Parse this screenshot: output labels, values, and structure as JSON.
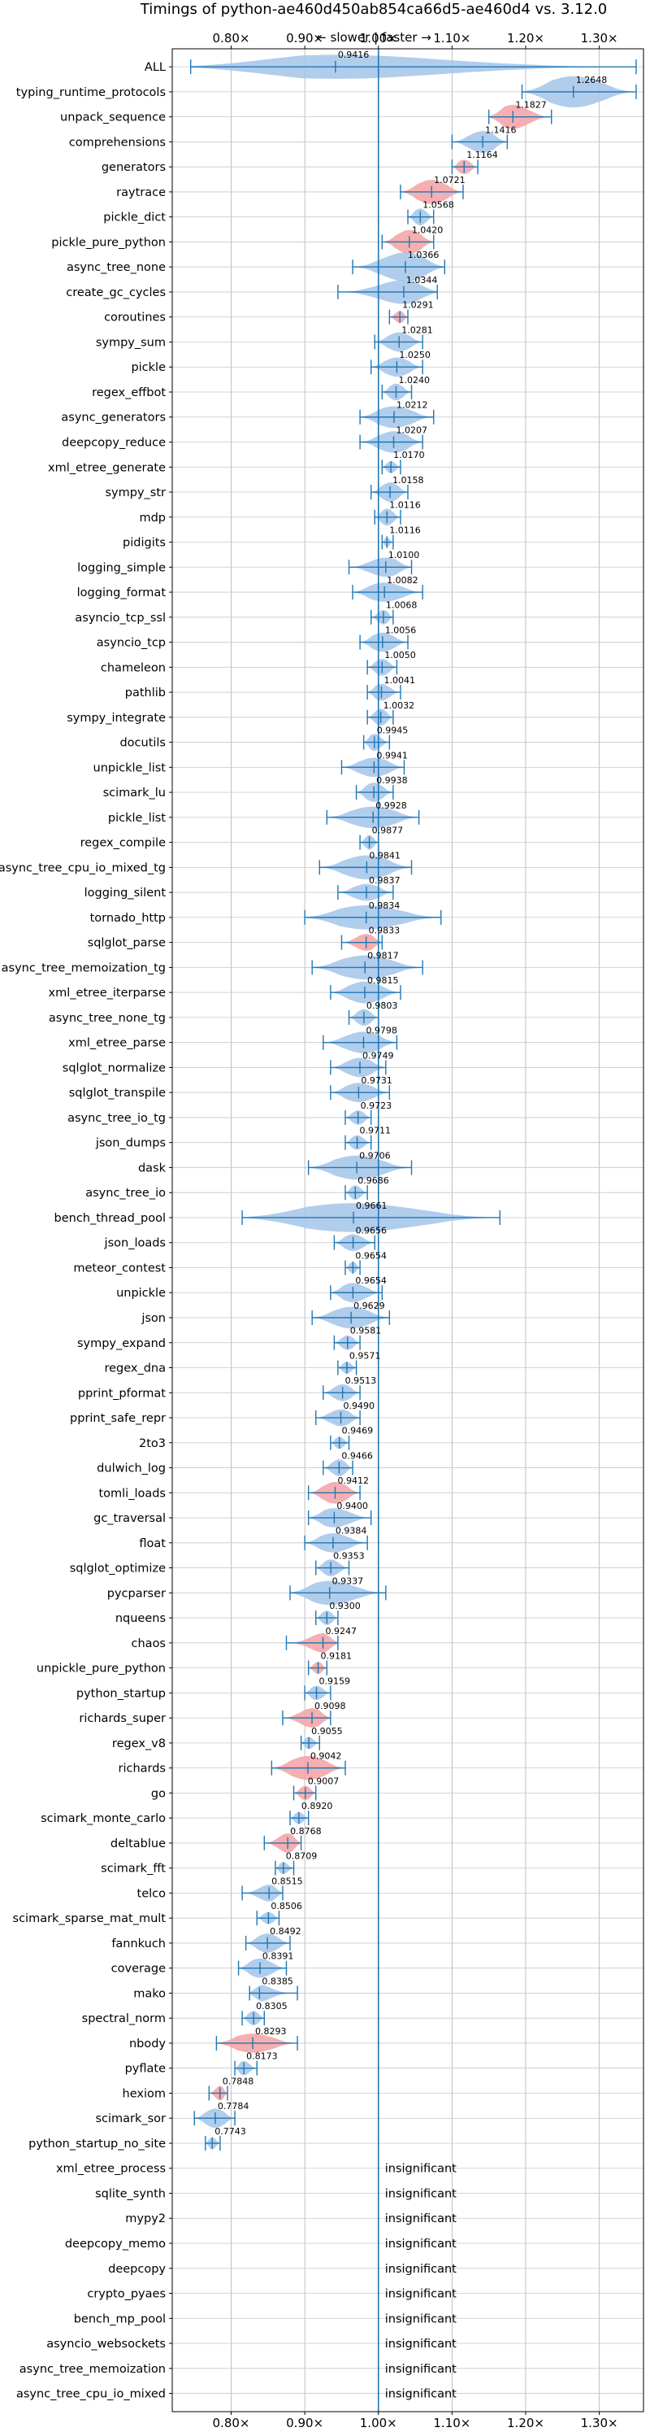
{
  "chart_data": {
    "type": "violin",
    "title": "Timings of python-ae460d450ab854ca66d5-ae460d4 vs. 3.12.0",
    "direction_label": "← slower | faster →",
    "xlim": [
      0.72,
      1.36
    ],
    "x_ticks": [
      0.8,
      0.9,
      1.0,
      1.1,
      1.2,
      1.3
    ],
    "x_tick_labels": [
      "0.80×",
      "0.90×",
      "1.00×",
      "1.10×",
      "1.20×",
      "1.30×"
    ],
    "reference_line": 1.0,
    "grid": true,
    "colors": {
      "normal": "#a8c8ea",
      "highlight": "#f4a6a8",
      "line": "#1f77b4"
    },
    "insignificant_text": "insignificant",
    "benchmarks": [
      {
        "name": "ALL",
        "mean": 0.9416,
        "label": "0.9416",
        "min": 0.745,
        "max": 1.35,
        "width": 1.0,
        "highlight": false,
        "significant": true
      },
      {
        "name": "typing_runtime_protocols",
        "mean": 1.2648,
        "label": "1.2648",
        "min": 1.195,
        "max": 1.35,
        "width": 1.3,
        "highlight": false,
        "significant": true
      },
      {
        "name": "unpack_sequence",
        "mean": 1.1827,
        "label": "1.1827",
        "min": 1.15,
        "max": 1.235,
        "width": 1.0,
        "highlight": true,
        "significant": true
      },
      {
        "name": "comprehensions",
        "mean": 1.1416,
        "label": "1.1416",
        "min": 1.1,
        "max": 1.175,
        "width": 0.9,
        "highlight": false,
        "significant": true
      },
      {
        "name": "generators",
        "mean": 1.1164,
        "label": "1.1164",
        "min": 1.1,
        "max": 1.135,
        "width": 0.6,
        "highlight": true,
        "significant": true
      },
      {
        "name": "raytrace",
        "mean": 1.0721,
        "label": "1.0721",
        "min": 1.03,
        "max": 1.115,
        "width": 1.0,
        "highlight": true,
        "significant": true
      },
      {
        "name": "pickle_dict",
        "mean": 1.0568,
        "label": "1.0568",
        "min": 1.04,
        "max": 1.075,
        "width": 0.7,
        "highlight": false,
        "significant": true
      },
      {
        "name": "pickle_pure_python",
        "mean": 1.042,
        "label": "1.0420",
        "min": 1.005,
        "max": 1.075,
        "width": 1.0,
        "highlight": true,
        "significant": true
      },
      {
        "name": "async_tree_none",
        "mean": 1.0366,
        "label": "1.0366",
        "min": 0.965,
        "max": 1.09,
        "width": 1.2,
        "highlight": false,
        "significant": true
      },
      {
        "name": "create_gc_cycles",
        "mean": 1.0344,
        "label": "1.0344",
        "min": 0.945,
        "max": 1.08,
        "width": 1.0,
        "highlight": false,
        "significant": true
      },
      {
        "name": "coroutines",
        "mean": 1.0291,
        "label": "1.0291",
        "min": 1.015,
        "max": 1.04,
        "width": 0.5,
        "highlight": true,
        "significant": true
      },
      {
        "name": "sympy_sum",
        "mean": 1.0281,
        "label": "1.0281",
        "min": 0.995,
        "max": 1.06,
        "width": 0.8,
        "highlight": false,
        "significant": true
      },
      {
        "name": "pickle",
        "mean": 1.025,
        "label": "1.0250",
        "min": 0.99,
        "max": 1.06,
        "width": 0.8,
        "highlight": false,
        "significant": true
      },
      {
        "name": "regex_effbot",
        "mean": 1.024,
        "label": "1.0240",
        "min": 1.005,
        "max": 1.045,
        "width": 0.7,
        "highlight": false,
        "significant": true
      },
      {
        "name": "async_generators",
        "mean": 1.0212,
        "label": "1.0212",
        "min": 0.975,
        "max": 1.075,
        "width": 0.9,
        "highlight": false,
        "significant": true
      },
      {
        "name": "deepcopy_reduce",
        "mean": 1.0207,
        "label": "1.0207",
        "min": 0.975,
        "max": 1.06,
        "width": 0.9,
        "highlight": false,
        "significant": true
      },
      {
        "name": "xml_etree_generate",
        "mean": 1.017,
        "label": "1.0170",
        "min": 1.005,
        "max": 1.03,
        "width": 0.5,
        "highlight": false,
        "significant": true
      },
      {
        "name": "sympy_str",
        "mean": 1.0158,
        "label": "1.0158",
        "min": 0.99,
        "max": 1.04,
        "width": 0.8,
        "highlight": false,
        "significant": true
      },
      {
        "name": "mdp",
        "mean": 1.0116,
        "label": "1.0116",
        "min": 0.995,
        "max": 1.03,
        "width": 0.7,
        "highlight": false,
        "significant": true
      },
      {
        "name": "pidigits",
        "mean": 1.0116,
        "label": "1.0116",
        "min": 1.005,
        "max": 1.02,
        "width": 0.4,
        "highlight": false,
        "significant": true
      },
      {
        "name": "logging_simple",
        "mean": 1.01,
        "label": "1.0100",
        "min": 0.96,
        "max": 1.045,
        "width": 0.8,
        "highlight": false,
        "significant": true
      },
      {
        "name": "logging_format",
        "mean": 1.0082,
        "label": "1.0082",
        "min": 0.965,
        "max": 1.06,
        "width": 0.8,
        "highlight": false,
        "significant": true
      },
      {
        "name": "asyncio_tcp_ssl",
        "mean": 1.0068,
        "label": "1.0068",
        "min": 0.99,
        "max": 1.02,
        "width": 0.6,
        "highlight": false,
        "significant": true
      },
      {
        "name": "asyncio_tcp",
        "mean": 1.0056,
        "label": "1.0056",
        "min": 0.975,
        "max": 1.04,
        "width": 0.8,
        "highlight": false,
        "significant": true
      },
      {
        "name": "chameleon",
        "mean": 1.005,
        "label": "1.0050",
        "min": 0.985,
        "max": 1.025,
        "width": 0.7,
        "highlight": false,
        "significant": true
      },
      {
        "name": "pathlib",
        "mean": 1.0041,
        "label": "1.0041",
        "min": 0.985,
        "max": 1.03,
        "width": 0.7,
        "highlight": false,
        "significant": true
      },
      {
        "name": "sympy_integrate",
        "mean": 1.0032,
        "label": "1.0032",
        "min": 0.985,
        "max": 1.02,
        "width": 0.7,
        "highlight": false,
        "significant": true
      },
      {
        "name": "docutils",
        "mean": 0.9945,
        "label": "0.9945",
        "min": 0.98,
        "max": 1.015,
        "width": 0.7,
        "highlight": false,
        "significant": true
      },
      {
        "name": "unpickle_list",
        "mean": 0.9941,
        "label": "0.9941",
        "min": 0.95,
        "max": 1.035,
        "width": 0.8,
        "highlight": false,
        "significant": true
      },
      {
        "name": "scimark_lu",
        "mean": 0.9938,
        "label": "0.9938",
        "min": 0.97,
        "max": 1.02,
        "width": 0.8,
        "highlight": false,
        "significant": true
      },
      {
        "name": "pickle_list",
        "mean": 0.9928,
        "label": "0.9928",
        "min": 0.93,
        "max": 1.055,
        "width": 0.9,
        "highlight": false,
        "significant": true
      },
      {
        "name": "regex_compile",
        "mean": 0.9877,
        "label": "0.9877",
        "min": 0.975,
        "max": 1.0,
        "width": 0.6,
        "highlight": false,
        "significant": true
      },
      {
        "name": "async_tree_cpu_io_mixed_tg",
        "mean": 0.9841,
        "label": "0.9841",
        "min": 0.92,
        "max": 1.045,
        "width": 1.0,
        "highlight": false,
        "significant": true
      },
      {
        "name": "logging_silent",
        "mean": 0.9837,
        "label": "0.9837",
        "min": 0.945,
        "max": 1.02,
        "width": 0.7,
        "highlight": false,
        "significant": true
      },
      {
        "name": "tornado_http",
        "mean": 0.9834,
        "label": "0.9834",
        "min": 0.9,
        "max": 1.085,
        "width": 1.0,
        "highlight": false,
        "significant": true
      },
      {
        "name": "sqlglot_parse",
        "mean": 0.9833,
        "label": "0.9833",
        "min": 0.95,
        "max": 1.005,
        "width": 0.7,
        "highlight": true,
        "significant": true
      },
      {
        "name": "async_tree_memoization_tg",
        "mean": 0.9817,
        "label": "0.9817",
        "min": 0.91,
        "max": 1.06,
        "width": 1.0,
        "highlight": false,
        "significant": true
      },
      {
        "name": "xml_etree_iterparse",
        "mean": 0.9815,
        "label": "0.9815",
        "min": 0.935,
        "max": 1.03,
        "width": 0.9,
        "highlight": false,
        "significant": true
      },
      {
        "name": "async_tree_none_tg",
        "mean": 0.9803,
        "label": "0.9803",
        "min": 0.96,
        "max": 1.0,
        "width": 0.7,
        "highlight": false,
        "significant": true
      },
      {
        "name": "xml_etree_parse",
        "mean": 0.9798,
        "label": "0.9798",
        "min": 0.925,
        "max": 1.025,
        "width": 0.9,
        "highlight": false,
        "significant": true
      },
      {
        "name": "sqlglot_normalize",
        "mean": 0.9749,
        "label": "0.9749",
        "min": 0.935,
        "max": 1.01,
        "width": 0.8,
        "highlight": false,
        "significant": true
      },
      {
        "name": "sqlglot_transpile",
        "mean": 0.9731,
        "label": "0.9731",
        "min": 0.935,
        "max": 1.015,
        "width": 0.8,
        "highlight": false,
        "significant": true
      },
      {
        "name": "async_tree_io_tg",
        "mean": 0.9723,
        "label": "0.9723",
        "min": 0.955,
        "max": 0.99,
        "width": 0.6,
        "highlight": false,
        "significant": true
      },
      {
        "name": "json_dumps",
        "mean": 0.9711,
        "label": "0.9711",
        "min": 0.955,
        "max": 0.99,
        "width": 0.6,
        "highlight": false,
        "significant": true
      },
      {
        "name": "dask",
        "mean": 0.9706,
        "label": "0.9706",
        "min": 0.905,
        "max": 1.045,
        "width": 1.0,
        "highlight": false,
        "significant": true
      },
      {
        "name": "async_tree_io",
        "mean": 0.9686,
        "label": "0.9686",
        "min": 0.955,
        "max": 0.985,
        "width": 0.6,
        "highlight": false,
        "significant": true
      },
      {
        "name": "bench_thread_pool",
        "mean": 0.9661,
        "label": "0.9661",
        "min": 0.815,
        "max": 1.165,
        "width": 1.2,
        "highlight": false,
        "significant": true
      },
      {
        "name": "json_loads",
        "mean": 0.9656,
        "label": "0.9656",
        "min": 0.94,
        "max": 0.995,
        "width": 0.7,
        "highlight": false,
        "significant": true
      },
      {
        "name": "meteor_contest",
        "mean": 0.9654,
        "label": "0.9654",
        "min": 0.955,
        "max": 0.975,
        "width": 0.5,
        "highlight": false,
        "significant": true
      },
      {
        "name": "unpickle",
        "mean": 0.9654,
        "label": "0.9654",
        "min": 0.935,
        "max": 1.005,
        "width": 0.8,
        "highlight": false,
        "significant": true
      },
      {
        "name": "json",
        "mean": 0.9629,
        "label": "0.9629",
        "min": 0.91,
        "max": 1.015,
        "width": 0.9,
        "highlight": false,
        "significant": true
      },
      {
        "name": "sympy_expand",
        "mean": 0.9581,
        "label": "0.9581",
        "min": 0.94,
        "max": 0.975,
        "width": 0.6,
        "highlight": false,
        "significant": true
      },
      {
        "name": "regex_dna",
        "mean": 0.9571,
        "label": "0.9571",
        "min": 0.945,
        "max": 0.97,
        "width": 0.5,
        "highlight": false,
        "significant": true
      },
      {
        "name": "pprint_pformat",
        "mean": 0.9513,
        "label": "0.9513",
        "min": 0.925,
        "max": 0.975,
        "width": 0.7,
        "highlight": false,
        "significant": true
      },
      {
        "name": "pprint_safe_repr",
        "mean": 0.949,
        "label": "0.9490",
        "min": 0.915,
        "max": 0.975,
        "width": 0.7,
        "highlight": false,
        "significant": true
      },
      {
        "name": "2to3",
        "mean": 0.9469,
        "label": "0.9469",
        "min": 0.935,
        "max": 0.96,
        "width": 0.5,
        "highlight": false,
        "significant": true
      },
      {
        "name": "dulwich_log",
        "mean": 0.9466,
        "label": "0.9466",
        "min": 0.925,
        "max": 0.965,
        "width": 0.7,
        "highlight": false,
        "significant": true
      },
      {
        "name": "tomli_loads",
        "mean": 0.9412,
        "label": "0.9412",
        "min": 0.905,
        "max": 0.975,
        "width": 0.9,
        "highlight": true,
        "significant": true
      },
      {
        "name": "gc_traversal",
        "mean": 0.94,
        "label": "0.9400",
        "min": 0.905,
        "max": 0.99,
        "width": 0.8,
        "highlight": false,
        "significant": true
      },
      {
        "name": "float",
        "mean": 0.9384,
        "label": "0.9384",
        "min": 0.9,
        "max": 0.985,
        "width": 0.8,
        "highlight": false,
        "significant": true
      },
      {
        "name": "sqlglot_optimize",
        "mean": 0.9353,
        "label": "0.9353",
        "min": 0.915,
        "max": 0.96,
        "width": 0.7,
        "highlight": false,
        "significant": true
      },
      {
        "name": "pycparser",
        "mean": 0.9337,
        "label": "0.9337",
        "min": 0.88,
        "max": 1.01,
        "width": 1.0,
        "highlight": false,
        "significant": true
      },
      {
        "name": "nqueens",
        "mean": 0.93,
        "label": "0.9300",
        "min": 0.915,
        "max": 0.945,
        "width": 0.6,
        "highlight": false,
        "significant": true
      },
      {
        "name": "chaos",
        "mean": 0.9247,
        "label": "0.9247",
        "min": 0.875,
        "max": 0.945,
        "width": 0.8,
        "highlight": true,
        "significant": true
      },
      {
        "name": "unpickle_pure_python",
        "mean": 0.9181,
        "label": "0.9181",
        "min": 0.905,
        "max": 0.93,
        "width": 0.5,
        "highlight": true,
        "significant": true
      },
      {
        "name": "python_startup",
        "mean": 0.9159,
        "label": "0.9159",
        "min": 0.9,
        "max": 0.935,
        "width": 0.6,
        "highlight": false,
        "significant": true
      },
      {
        "name": "richards_super",
        "mean": 0.9098,
        "label": "0.9098",
        "min": 0.87,
        "max": 0.935,
        "width": 0.8,
        "highlight": true,
        "significant": true
      },
      {
        "name": "regex_v8",
        "mean": 0.9055,
        "label": "0.9055",
        "min": 0.895,
        "max": 0.92,
        "width": 0.5,
        "highlight": false,
        "significant": true
      },
      {
        "name": "richards",
        "mean": 0.9042,
        "label": "0.9042",
        "min": 0.855,
        "max": 0.955,
        "width": 1.0,
        "highlight": true,
        "significant": true
      },
      {
        "name": "go",
        "mean": 0.9007,
        "label": "0.9007",
        "min": 0.885,
        "max": 0.915,
        "width": 0.6,
        "highlight": true,
        "significant": true
      },
      {
        "name": "scimark_monte_carlo",
        "mean": 0.892,
        "label": "0.8920",
        "min": 0.88,
        "max": 0.905,
        "width": 0.5,
        "highlight": false,
        "significant": true
      },
      {
        "name": "deltablue",
        "mean": 0.8768,
        "label": "0.8768",
        "min": 0.845,
        "max": 0.895,
        "width": 0.8,
        "highlight": true,
        "significant": true
      },
      {
        "name": "scimark_fft",
        "mean": 0.8709,
        "label": "0.8709",
        "min": 0.86,
        "max": 0.885,
        "width": 0.5,
        "highlight": false,
        "significant": true
      },
      {
        "name": "telco",
        "mean": 0.8515,
        "label": "0.8515",
        "min": 0.815,
        "max": 0.87,
        "width": 0.7,
        "highlight": false,
        "significant": true
      },
      {
        "name": "scimark_sparse_mat_mult",
        "mean": 0.8506,
        "label": "0.8506",
        "min": 0.835,
        "max": 0.865,
        "width": 0.5,
        "highlight": false,
        "significant": true
      },
      {
        "name": "fannkuch",
        "mean": 0.8492,
        "label": "0.8492",
        "min": 0.82,
        "max": 0.88,
        "width": 0.8,
        "highlight": false,
        "significant": true
      },
      {
        "name": "coverage",
        "mean": 0.8391,
        "label": "0.8391",
        "min": 0.81,
        "max": 0.875,
        "width": 0.8,
        "highlight": false,
        "significant": true
      },
      {
        "name": "mako",
        "mean": 0.8385,
        "label": "0.8385",
        "min": 0.825,
        "max": 0.89,
        "width": 0.7,
        "highlight": false,
        "significant": true
      },
      {
        "name": "spectral_norm",
        "mean": 0.8305,
        "label": "0.8305",
        "min": 0.815,
        "max": 0.845,
        "width": 0.6,
        "highlight": false,
        "significant": true
      },
      {
        "name": "nbody",
        "mean": 0.8293,
        "label": "0.8293",
        "min": 0.78,
        "max": 0.89,
        "width": 0.8,
        "highlight": true,
        "significant": true
      },
      {
        "name": "pyflate",
        "mean": 0.8173,
        "label": "0.8173",
        "min": 0.805,
        "max": 0.835,
        "width": 0.6,
        "highlight": false,
        "significant": true
      },
      {
        "name": "hexiom",
        "mean": 0.7848,
        "label": "0.7848",
        "min": 0.77,
        "max": 0.795,
        "width": 0.6,
        "highlight": true,
        "significant": true
      },
      {
        "name": "scimark_sor",
        "mean": 0.7784,
        "label": "0.7784",
        "min": 0.75,
        "max": 0.805,
        "width": 0.8,
        "highlight": false,
        "significant": true
      },
      {
        "name": "python_startup_no_site",
        "mean": 0.7743,
        "label": "0.7743",
        "min": 0.765,
        "max": 0.785,
        "width": 0.5,
        "highlight": false,
        "significant": true
      },
      {
        "name": "xml_etree_process",
        "significant": false
      },
      {
        "name": "sqlite_synth",
        "significant": false
      },
      {
        "name": "mypy2",
        "significant": false
      },
      {
        "name": "deepcopy_memo",
        "significant": false
      },
      {
        "name": "deepcopy",
        "significant": false
      },
      {
        "name": "crypto_pyaes",
        "significant": false
      },
      {
        "name": "bench_mp_pool",
        "significant": false
      },
      {
        "name": "asyncio_websockets",
        "significant": false
      },
      {
        "name": "async_tree_memoization",
        "significant": false
      },
      {
        "name": "async_tree_cpu_io_mixed",
        "significant": false
      }
    ]
  }
}
